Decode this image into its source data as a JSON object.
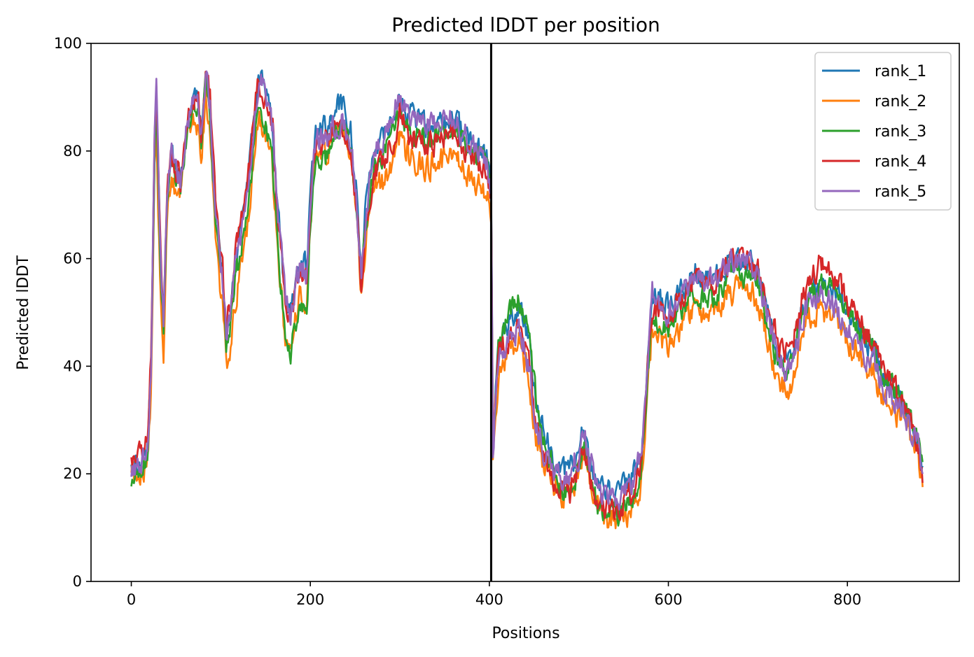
{
  "chart_data": {
    "type": "line",
    "title": "Predicted lDDT per position",
    "xlabel": "Positions",
    "ylabel": "Predicted lDDT",
    "xlim": [
      -45,
      925
    ],
    "ylim": [
      0,
      100
    ],
    "xticks": [
      0,
      200,
      400,
      600,
      800
    ],
    "yticks": [
      0,
      20,
      40,
      60,
      80,
      100
    ],
    "grid": false,
    "legend_position": "top-right",
    "divider_x": 402,
    "divider_color": "#000000",
    "series": [
      {
        "name": "rank_1",
        "color": "#1f77b4",
        "seed": 1,
        "noise": 1.6,
        "offset": [
          [
            0,
            0
          ],
          [
            230,
            3
          ],
          [
            260,
            2
          ],
          [
            300,
            1
          ],
          [
            400,
            0
          ],
          [
            403,
            2
          ],
          [
            440,
            3
          ],
          [
            600,
            2
          ],
          [
            700,
            0
          ],
          [
            800,
            1
          ],
          [
            884,
            1
          ]
        ]
      },
      {
        "name": "rank_2",
        "color": "#ff7f0e",
        "seed": 2,
        "noise": 1.8,
        "offset": [
          [
            0,
            0
          ],
          [
            30,
            -6
          ],
          [
            60,
            -3
          ],
          [
            110,
            -5
          ],
          [
            170,
            -6
          ],
          [
            230,
            -1
          ],
          [
            280,
            -7
          ],
          [
            350,
            -7
          ],
          [
            400,
            -7
          ],
          [
            403,
            -3
          ],
          [
            440,
            -4
          ],
          [
            500,
            -1
          ],
          [
            600,
            -5
          ],
          [
            700,
            -5
          ],
          [
            800,
            -4
          ],
          [
            884,
            -2
          ]
        ]
      },
      {
        "name": "rank_3",
        "color": "#2ca02c",
        "seed": 3,
        "noise": 1.6,
        "offset": [
          [
            0,
            -1
          ],
          [
            110,
            -1
          ],
          [
            170,
            -5
          ],
          [
            190,
            -6
          ],
          [
            230,
            -1
          ],
          [
            300,
            -2
          ],
          [
            400,
            -1
          ],
          [
            403,
            1
          ],
          [
            440,
            5
          ],
          [
            480,
            -1
          ],
          [
            600,
            -2
          ],
          [
            700,
            -2
          ],
          [
            800,
            1
          ],
          [
            884,
            1
          ]
        ]
      },
      {
        "name": "rank_4",
        "color": "#d62728",
        "seed": 4,
        "noise": 1.7,
        "offset": [
          [
            0,
            2
          ],
          [
            20,
            3
          ],
          [
            60,
            0
          ],
          [
            110,
            3
          ],
          [
            170,
            1
          ],
          [
            230,
            0
          ],
          [
            280,
            -3
          ],
          [
            350,
            -3
          ],
          [
            400,
            -2
          ],
          [
            403,
            0
          ],
          [
            440,
            -1
          ],
          [
            530,
            -1
          ],
          [
            600,
            0
          ],
          [
            700,
            1
          ],
          [
            780,
            4
          ],
          [
            884,
            0
          ]
        ]
      },
      {
        "name": "rank_5",
        "color": "#9467bd",
        "seed": 5,
        "noise": 1.7,
        "offset": [
          [
            0,
            0
          ],
          [
            170,
            2
          ],
          [
            190,
            1
          ],
          [
            230,
            0
          ],
          [
            300,
            1
          ],
          [
            400,
            0
          ],
          [
            403,
            0
          ],
          [
            440,
            -2
          ],
          [
            500,
            2
          ],
          [
            600,
            1
          ],
          [
            700,
            0
          ],
          [
            800,
            -2
          ],
          [
            884,
            0
          ]
        ]
      }
    ],
    "base_profile": [
      [
        0,
        20
      ],
      [
        10,
        21
      ],
      [
        18,
        25
      ],
      [
        22,
        40
      ],
      [
        26,
        82
      ],
      [
        28,
        90
      ],
      [
        33,
        57
      ],
      [
        36,
        48
      ],
      [
        40,
        72
      ],
      [
        45,
        79
      ],
      [
        50,
        76
      ],
      [
        55,
        74
      ],
      [
        62,
        85
      ],
      [
        70,
        89
      ],
      [
        75,
        88
      ],
      [
        78,
        82
      ],
      [
        83,
        93
      ],
      [
        88,
        88
      ],
      [
        92,
        75
      ],
      [
        97,
        62
      ],
      [
        102,
        55
      ],
      [
        106,
        45
      ],
      [
        110,
        48
      ],
      [
        115,
        57
      ],
      [
        122,
        63
      ],
      [
        130,
        71
      ],
      [
        136,
        82
      ],
      [
        142,
        92
      ],
      [
        147,
        90
      ],
      [
        152,
        87
      ],
      [
        158,
        82
      ],
      [
        162,
        70
      ],
      [
        167,
        60
      ],
      [
        172,
        50
      ],
      [
        178,
        48
      ],
      [
        185,
        55
      ],
      [
        190,
        58
      ],
      [
        196,
        56
      ],
      [
        200,
        70
      ],
      [
        205,
        80
      ],
      [
        210,
        82
      ],
      [
        218,
        81
      ],
      [
        225,
        84
      ],
      [
        235,
        86
      ],
      [
        245,
        82
      ],
      [
        252,
        70
      ],
      [
        257,
        56
      ],
      [
        262,
        68
      ],
      [
        270,
        78
      ],
      [
        280,
        81
      ],
      [
        290,
        84
      ],
      [
        300,
        90
      ],
      [
        310,
        86
      ],
      [
        320,
        85
      ],
      [
        330,
        84
      ],
      [
        345,
        85
      ],
      [
        360,
        86
      ],
      [
        375,
        82
      ],
      [
        390,
        80
      ],
      [
        398,
        78
      ],
      [
        402,
        72
      ],
      [
        404,
        25
      ],
      [
        410,
        42
      ],
      [
        418,
        45
      ],
      [
        425,
        47
      ],
      [
        433,
        48
      ],
      [
        440,
        45
      ],
      [
        446,
        39
      ],
      [
        452,
        31
      ],
      [
        460,
        25
      ],
      [
        470,
        21
      ],
      [
        480,
        18
      ],
      [
        490,
        18
      ],
      [
        500,
        22
      ],
      [
        505,
        26
      ],
      [
        512,
        21
      ],
      [
        520,
        16
      ],
      [
        530,
        14
      ],
      [
        540,
        14
      ],
      [
        550,
        15
      ],
      [
        560,
        17
      ],
      [
        570,
        22
      ],
      [
        577,
        40
      ],
      [
        582,
        52
      ],
      [
        590,
        50
      ],
      [
        600,
        49
      ],
      [
        610,
        51
      ],
      [
        620,
        54
      ],
      [
        630,
        56
      ],
      [
        640,
        55
      ],
      [
        650,
        55
      ],
      [
        660,
        57
      ],
      [
        670,
        59
      ],
      [
        680,
        59
      ],
      [
        690,
        59
      ],
      [
        700,
        57
      ],
      [
        710,
        50
      ],
      [
        720,
        44
      ],
      [
        730,
        40
      ],
      [
        740,
        42
      ],
      [
        750,
        50
      ],
      [
        760,
        54
      ],
      [
        770,
        55
      ],
      [
        780,
        54
      ],
      [
        790,
        52
      ],
      [
        800,
        48
      ],
      [
        810,
        47
      ],
      [
        820,
        44
      ],
      [
        830,
        42
      ],
      [
        840,
        37
      ],
      [
        850,
        35
      ],
      [
        860,
        33
      ],
      [
        870,
        29
      ],
      [
        878,
        26
      ],
      [
        884,
        20
      ]
    ]
  }
}
